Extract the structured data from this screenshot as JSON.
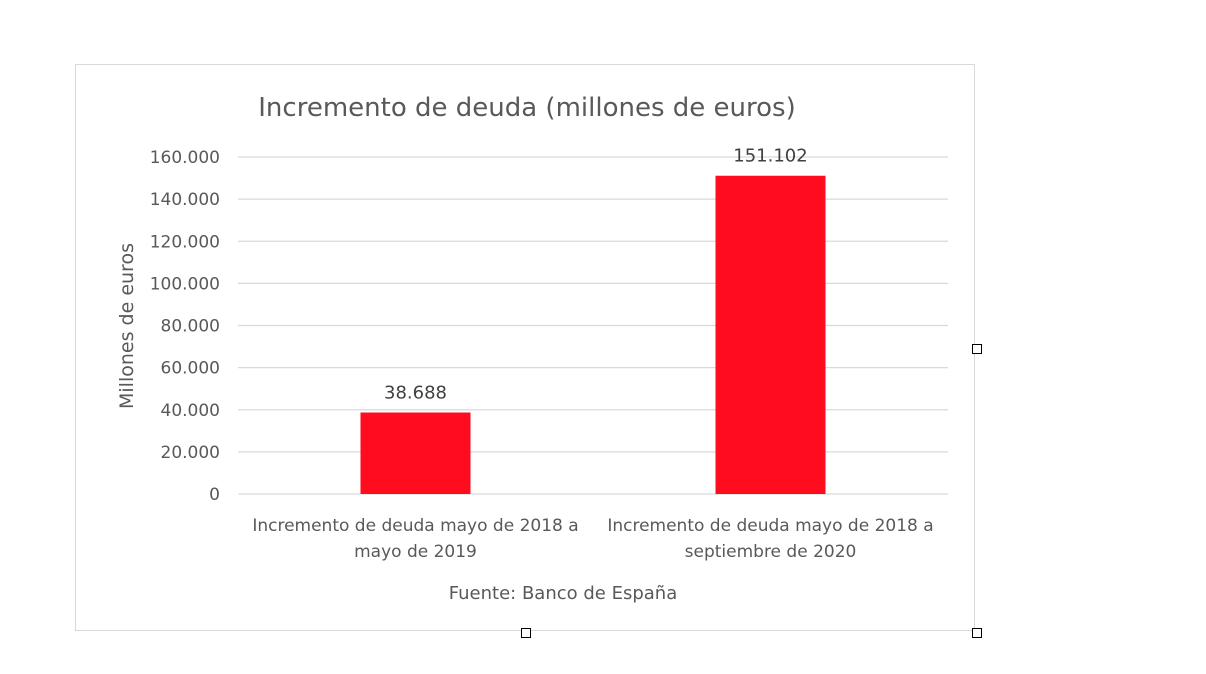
{
  "chart_data": {
    "type": "bar",
    "title": "Incremento de deuda (millones de euros)",
    "ylabel": "Millones de euros",
    "xlabel": "Fuente: Banco de España",
    "categories": [
      [
        "Incremento de deuda mayo de 2018 a",
        "mayo de 2019"
      ],
      [
        "Incremento de deuda mayo de 2018 a",
        "septiembre de 2020"
      ]
    ],
    "values": [
      38688,
      151102
    ],
    "value_labels": [
      "38.688",
      "151.102"
    ],
    "ylim": [
      0,
      160000
    ],
    "yticks": [
      0,
      20000,
      40000,
      60000,
      80000,
      100000,
      120000,
      140000,
      160000
    ],
    "ytick_labels": [
      "0",
      "20.000",
      "40.000",
      "60.000",
      "80.000",
      "100.000",
      "120.000",
      "140.000",
      "160.000"
    ],
    "grid": true,
    "bar_color": "#ff0d1f",
    "grid_color": "#d9d9d9",
    "text_color": "#595959"
  }
}
